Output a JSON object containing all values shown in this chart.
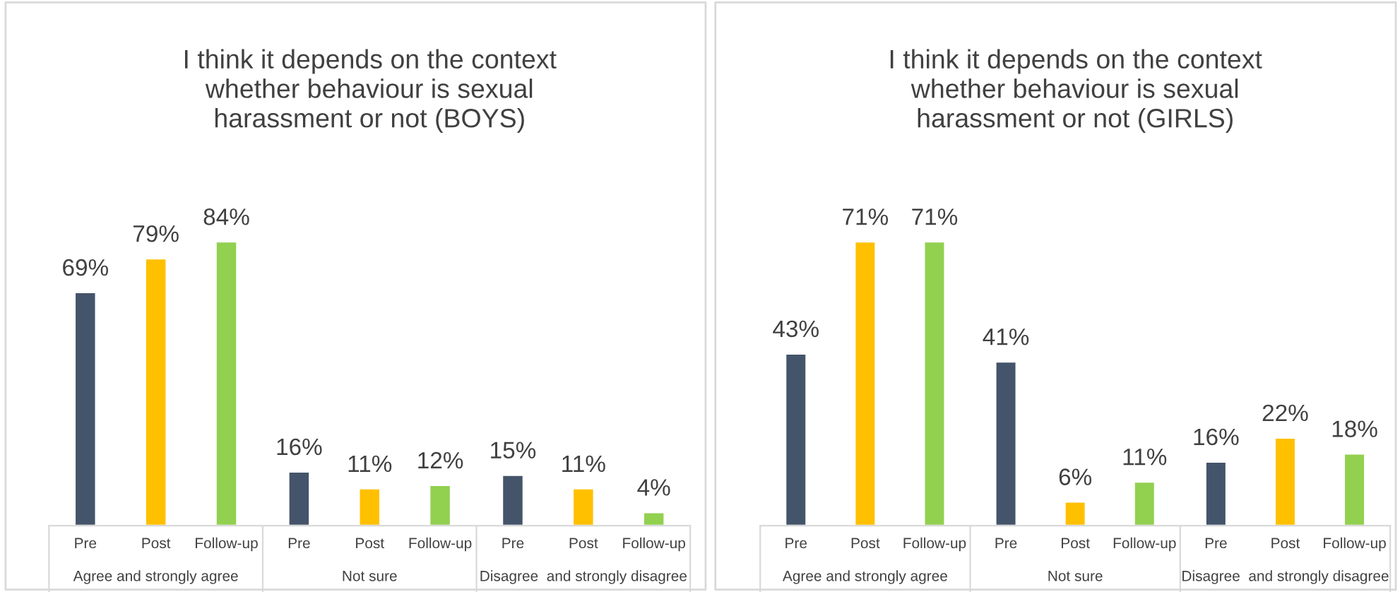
{
  "chart_data": [
    {
      "type": "bar",
      "title": "I think it depends on the context\nwhether behaviour is sexual\nharassment or not (BOYS)",
      "categories": [
        "Agree and strongly agree",
        "Not sure",
        "Disagree  and strongly disagree"
      ],
      "legend": false,
      "series": [
        {
          "name": "Pre",
          "color": "#44546a",
          "values": [
            69,
            16,
            15
          ],
          "value_labels": [
            "69%",
            "16%",
            "15%"
          ]
        },
        {
          "name": "Post",
          "color": "#ffc000",
          "values": [
            79,
            11,
            11
          ],
          "value_labels": [
            "79%",
            "11%",
            "11%"
          ]
        },
        {
          "name": "Follow-up",
          "color": "#92d050",
          "values": [
            84,
            12,
            4
          ],
          "value_labels": [
            "84%",
            "12%",
            "4%"
          ]
        }
      ]
    },
    {
      "type": "bar",
      "title": "I think it depends on the context\nwhether behaviour is sexual\nharassment or not (GIRLS)",
      "categories": [
        "Agree and strongly agree",
        "Not sure",
        "Disagree  and strongly disagree"
      ],
      "legend": false,
      "series": [
        {
          "name": "Pre",
          "color": "#44546a",
          "values": [
            43,
            41,
            16
          ],
          "value_labels": [
            "43%",
            "41%",
            "16%"
          ]
        },
        {
          "name": "Post",
          "color": "#ffc000",
          "values": [
            71,
            6,
            22
          ],
          "value_labels": [
            "71%",
            "6%",
            "22%"
          ]
        },
        {
          "name": "Follow-up",
          "color": "#92d050",
          "values": [
            71,
            11,
            18
          ],
          "value_labels": [
            "71%",
            "11%",
            "18%"
          ]
        }
      ]
    }
  ]
}
